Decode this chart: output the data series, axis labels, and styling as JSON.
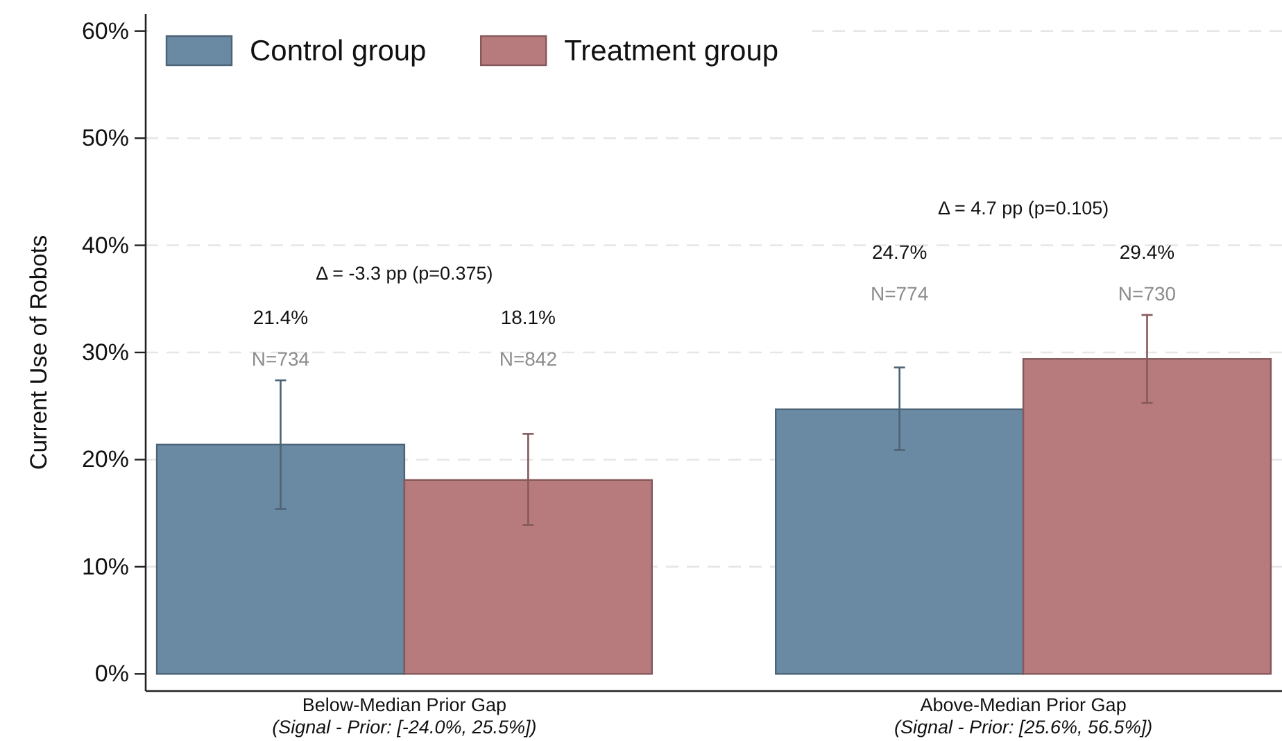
{
  "chart_data": {
    "type": "bar",
    "categories": [
      "Below-Median Prior Gap\n(Signal - Prior: [-24.0%, 25.5%])",
      "Above-Median Prior Gap\n(Signal - Prior: [25.6%, 56.5%])"
    ],
    "series": [
      {
        "name": "Control group",
        "color": "#6a89a3",
        "values": [
          21.4,
          24.7
        ],
        "errors": [
          [
            15.4,
            27.4
          ],
          [
            20.9,
            28.6
          ]
        ]
      },
      {
        "name": "Treatment group",
        "color": "#b77b7e",
        "values": [
          18.1,
          29.4
        ],
        "errors": [
          [
            13.9,
            22.4
          ],
          [
            25.3,
            33.5
          ]
        ]
      }
    ],
    "ylabel": "Current Use of Robots",
    "ylim": [
      -1.6,
      61.6
    ],
    "yticks": [
      {
        "value": 0,
        "label": "0%"
      },
      {
        "value": 10,
        "label": "10%"
      },
      {
        "value": 20,
        "label": "20%"
      },
      {
        "value": 30,
        "label": "30%"
      },
      {
        "value": 40,
        "label": "40%"
      },
      {
        "value": 50,
        "label": "50%"
      },
      {
        "value": 60,
        "label": "60%"
      }
    ],
    "grid": "y",
    "legend": "top left",
    "annotations": [
      "Δ = -3.3 pp (p=0.375)",
      "Δ = 4.7 pp (p=0.105)",
      "21.4%",
      "24.7%",
      "18.1%",
      "29.4%",
      "N=734",
      "N=774",
      "N=842",
      "N=730"
    ]
  }
}
